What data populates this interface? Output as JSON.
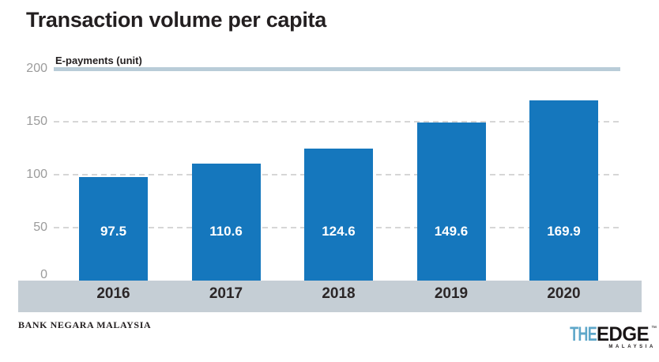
{
  "title": "Transaction volume per capita",
  "axis_label": "E-payments (unit)",
  "source": "BANK NEGARA MALAYSIA",
  "logo": {
    "the": "THE",
    "edge": "EDGE",
    "tm": "™",
    "malaysia": "MALAYSIA"
  },
  "chart_data": {
    "type": "bar",
    "title": "Transaction volume per capita",
    "ylabel": "E-payments (unit)",
    "xlabel": "",
    "categories": [
      "2016",
      "2017",
      "2018",
      "2019",
      "2020"
    ],
    "values": [
      97.5,
      110.6,
      124.6,
      149.6,
      169.9
    ],
    "value_labels": [
      "97.5",
      "110.6",
      "124.6",
      "149.6",
      "169.9"
    ],
    "ylim": [
      0,
      200
    ],
    "y_ticks": [
      0,
      50,
      100,
      150,
      200
    ],
    "grid": "horizontal dashed at 50/100/150, thick solid line at 200",
    "legend": "none",
    "colors": {
      "bar": "#1577BD",
      "bar_value_text": "#FFFFFF",
      "axis_band": "#C5CED5",
      "top_line": "#B9CCD8",
      "gridline": "#D6D6D6",
      "tick_text": "#9B9B9B",
      "title_text": "#231F20",
      "logo_the_blue": "#5EA7C9"
    }
  }
}
